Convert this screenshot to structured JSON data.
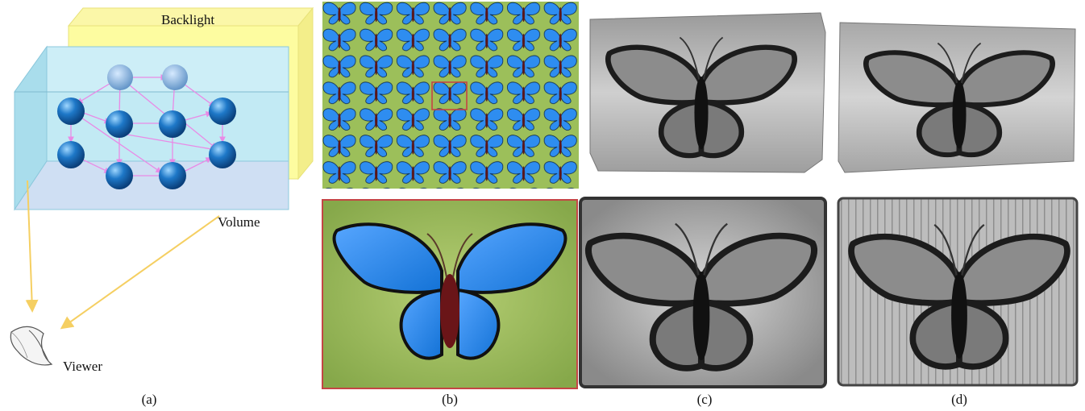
{
  "figure": {
    "panel_a": {
      "caption": "(a)",
      "backlight_label": "Backlight",
      "volume_label": "Volume",
      "viewer_label": "Viewer",
      "colors": {
        "backlight": "#fdfca0",
        "volume": "#b9e7f2",
        "spheres": "#1a6fb8",
        "arrows": "#e98ae6",
        "rays": "#f5cf62"
      }
    },
    "panel_b": {
      "caption": "(b)",
      "colors": {
        "background": "#9cbf5a",
        "wing": "#2e8df0",
        "border": "#c44545"
      }
    },
    "panel_c": {
      "caption": "(c)"
    },
    "panel_d": {
      "caption": "(d)"
    }
  }
}
